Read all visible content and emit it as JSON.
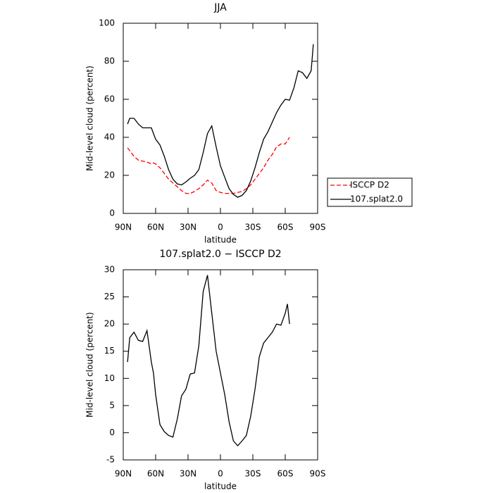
{
  "chart_data": [
    {
      "type": "line",
      "title": "JJA",
      "x_label": "latitude",
      "y_label": "Mid-level cloud (percent)",
      "x": [
        86,
        84,
        80,
        76,
        72,
        68,
        64,
        62,
        60,
        56,
        52,
        48,
        44,
        40,
        36,
        32,
        28,
        24,
        20,
        16,
        12,
        8,
        4,
        0,
        -4,
        -8,
        -12,
        -16,
        -20,
        -24,
        -28,
        -32,
        -36,
        -40,
        -44,
        -48,
        -52,
        -56,
        -60,
        -64,
        -68,
        -72,
        -76,
        -80,
        -84,
        -86
      ],
      "series": [
        {
          "name": "ISCCP D2",
          "color": "#ff0000",
          "dashed": true,
          "values": [
            34.5,
            33,
            30,
            28,
            27.5,
            27,
            26,
            26.5,
            26,
            24,
            21,
            18,
            16,
            14,
            12,
            10.5,
            10.5,
            11.5,
            13,
            15,
            17.5,
            16,
            12,
            11,
            10.5,
            10.5,
            10.5,
            11,
            11.5,
            13,
            15,
            18,
            21,
            24,
            28,
            31,
            35,
            36.5,
            36.5,
            40,
            null,
            null,
            null,
            null,
            null,
            null
          ]
        },
        {
          "name": "107.splat2.0",
          "color": "#000000",
          "dashed": false,
          "values": [
            47,
            50,
            50,
            47,
            45,
            45,
            45,
            42,
            39,
            36,
            30,
            23,
            18,
            15.5,
            15,
            16.5,
            18.5,
            20,
            23,
            32,
            42,
            46,
            35,
            25,
            19,
            13,
            10,
            8.5,
            9.5,
            12,
            17,
            24,
            32,
            39,
            43,
            48,
            53,
            57,
            60,
            59.5,
            66,
            75,
            74,
            71,
            75,
            89
          ]
        }
      ],
      "xlim": [
        90,
        -90
      ],
      "xticks": [
        {
          "value": 90,
          "label": "90N"
        },
        {
          "value": 60,
          "label": "60N"
        },
        {
          "value": 30,
          "label": "30N"
        },
        0,
        {
          "value": -30,
          "label": "30S"
        },
        {
          "value": -60,
          "label": "60S"
        },
        {
          "value": -90,
          "label": "90S"
        }
      ],
      "ylim": [
        0,
        100
      ],
      "yticks": [
        0,
        20,
        40,
        60,
        80,
        100
      ],
      "legend": "right"
    },
    {
      "type": "line",
      "title": "107.splat2.0 − ISCCP D2",
      "x_label": "latitude",
      "y_label": "Mid-level cloud (percent)",
      "x": [
        86,
        84,
        80,
        76,
        72,
        68,
        64,
        62,
        60,
        56,
        52,
        48,
        44,
        40,
        36,
        32,
        28,
        24,
        20,
        16,
        12,
        8,
        4,
        0,
        -4,
        -8,
        -12,
        -16,
        -20,
        -24,
        -28,
        -32,
        -36,
        -40,
        -44,
        -48,
        -52,
        -56,
        -60,
        -62,
        -64
      ],
      "series": [
        {
          "color": "#000000",
          "dashed": false,
          "values": [
            13,
            17.5,
            18.5,
            17,
            16.8,
            18.8,
            13,
            11,
            7,
            1.5,
            0.2,
            -0.5,
            -0.8,
            2.5,
            6.8,
            8,
            10.8,
            11,
            16,
            26,
            29,
            22,
            15,
            11,
            7,
            2,
            -1.5,
            -2.4,
            -1.5,
            -0.5,
            3,
            8,
            14,
            16.5,
            17.5,
            18.5,
            20,
            19.8,
            22,
            23.7,
            20
          ]
        }
      ],
      "xlim": [
        90,
        -90
      ],
      "xticks": [
        {
          "value": 90,
          "label": "90N"
        },
        {
          "value": 60,
          "label": "60N"
        },
        {
          "value": 30,
          "label": "30N"
        },
        0,
        {
          "value": -30,
          "label": "30S"
        },
        {
          "value": -60,
          "label": "60S"
        },
        {
          "value": -90,
          "label": "90S"
        }
      ],
      "ylim": [
        -5,
        30
      ],
      "yticks": [
        -5,
        0,
        5,
        10,
        15,
        20,
        25,
        30
      ]
    }
  ]
}
